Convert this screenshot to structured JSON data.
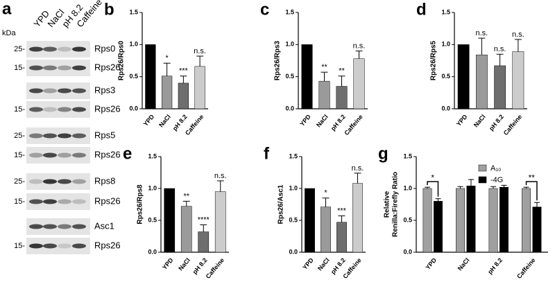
{
  "blot": {
    "panel": "a",
    "unit": "kDa",
    "lanes": [
      "YPD",
      "NaCl",
      "pH 8.2",
      "Caffeine"
    ],
    "rows": [
      {
        "label": "Rps0",
        "marker": "25-"
      },
      {
        "label": "Rps26",
        "marker": "15-"
      },
      {
        "label": "Rps3",
        "marker": null
      },
      {
        "label": "Rps26",
        "marker": "15-"
      },
      {
        "label": "Rps5",
        "marker": "25-"
      },
      {
        "label": "Rps26",
        "marker": "15-"
      },
      {
        "label": "Rps8",
        "marker": "25-"
      },
      {
        "label": "Rps26",
        "marker": "15-"
      },
      {
        "label": "Asc1",
        "marker": null
      },
      {
        "label": "Rps26",
        "marker": "15-"
      }
    ]
  },
  "chart_data": [
    {
      "type": "bar",
      "panel": "b",
      "ylabel": "Rps26/Rps0",
      "categories": [
        "YPD",
        "NaCl",
        "pH 8.2",
        "Caffeine"
      ],
      "values": [
        1.0,
        0.51,
        0.4,
        0.66
      ],
      "errors": [
        0,
        0.2,
        0.11,
        0.16
      ],
      "annotations": [
        null,
        "*",
        "***",
        "n.s."
      ],
      "colors": [
        "#000000",
        "#9a9a9a",
        "#6e6e6e",
        "#cccccc"
      ],
      "ylim": [
        0,
        1.5
      ],
      "yticks": [
        {
          "value": 0,
          "label": "0.0"
        },
        {
          "value": 0.5,
          "label": "0.5"
        },
        {
          "value": 1,
          "label": "1.0"
        },
        {
          "value": 1.5,
          "label": "1.5"
        }
      ]
    },
    {
      "type": "bar",
      "panel": "c",
      "ylabel": "Rps26/Rps3",
      "categories": [
        "YPD",
        "NaCl",
        "pH 8.2",
        "Caffeine"
      ],
      "values": [
        1.0,
        0.43,
        0.35,
        0.78
      ],
      "errors": [
        0,
        0.14,
        0.16,
        0.12
      ],
      "annotations": [
        null,
        "**",
        "**",
        "n.s."
      ],
      "colors": [
        "#000000",
        "#9a9a9a",
        "#6e6e6e",
        "#cccccc"
      ],
      "ylim": [
        0,
        1.5
      ],
      "yticks": [
        {
          "value": 0,
          "label": "0.0"
        },
        {
          "value": 0.5,
          "label": "0.5"
        },
        {
          "value": 1,
          "label": "1.0"
        },
        {
          "value": 1.5,
          "label": "1.5"
        }
      ]
    },
    {
      "type": "bar",
      "panel": "d",
      "ylabel": "Rps26/Rps5",
      "categories": [
        "YPD",
        "NaCl",
        "pH 8.2",
        "Caffeine"
      ],
      "values": [
        1.0,
        0.84,
        0.67,
        0.89
      ],
      "errors": [
        0,
        0.26,
        0.18,
        0.19
      ],
      "annotations": [
        null,
        "n.s.",
        "n.s.",
        "n.s."
      ],
      "colors": [
        "#000000",
        "#9a9a9a",
        "#6e6e6e",
        "#cccccc"
      ],
      "ylim": [
        0,
        1.5
      ],
      "yticks": [
        {
          "value": 0,
          "label": "0.0"
        },
        {
          "value": 0.5,
          "label": "0.5"
        },
        {
          "value": 1,
          "label": "1.0"
        },
        {
          "value": 1.5,
          "label": "1.5"
        }
      ]
    },
    {
      "type": "bar",
      "panel": "e",
      "ylabel": "Rps26/Rps8",
      "categories": [
        "YPD",
        "NaCl",
        "pH 8.2",
        "Caffeine"
      ],
      "values": [
        1.0,
        0.72,
        0.32,
        0.95
      ],
      "errors": [
        0,
        0.08,
        0.11,
        0.17
      ],
      "annotations": [
        null,
        "**",
        "****",
        "n.s."
      ],
      "colors": [
        "#000000",
        "#9a9a9a",
        "#6e6e6e",
        "#cccccc"
      ],
      "ylim": [
        0,
        1.5
      ],
      "yticks": [
        {
          "value": 0,
          "label": "0.0"
        },
        {
          "value": 0.5,
          "label": "0.5"
        },
        {
          "value": 1,
          "label": "1.0"
        },
        {
          "value": 1.5,
          "label": "1.5"
        }
      ]
    },
    {
      "type": "bar",
      "panel": "f",
      "ylabel": "Rps26/Asc1",
      "categories": [
        "YPD",
        "NaCl",
        "pH 8.2",
        "Caffeine"
      ],
      "values": [
        1.0,
        0.71,
        0.47,
        1.08
      ],
      "errors": [
        0,
        0.14,
        0.1,
        0.16
      ],
      "annotations": [
        null,
        "*",
        "***",
        "n.s."
      ],
      "colors": [
        "#000000",
        "#9a9a9a",
        "#6e6e6e",
        "#cccccc"
      ],
      "ylim": [
        0,
        1.5
      ],
      "yticks": [
        {
          "value": 0,
          "label": "0.0"
        },
        {
          "value": 0.5,
          "label": "0.5"
        },
        {
          "value": 1,
          "label": "1.0"
        },
        {
          "value": 1.5,
          "label": "1.5"
        }
      ]
    },
    {
      "type": "grouped_bar",
      "panel": "g",
      "ylabel": [
        "Relative",
        "Renilla:Firefly Ratio"
      ],
      "categories": [
        "YPD",
        "NaCl",
        "pH 8.2",
        "Caffeine"
      ],
      "series": [
        {
          "name": "A₁₀",
          "color": "#a0a0a0",
          "values": [
            1.0,
            1.0,
            1.0,
            1.0
          ],
          "errors": [
            0.02,
            0.03,
            0.03,
            0.02
          ]
        },
        {
          "name": "-4G",
          "color": "#000000",
          "values": [
            0.8,
            1.04,
            1.02,
            0.71
          ],
          "errors": [
            0.04,
            0.1,
            0.03,
            0.07
          ]
        }
      ],
      "annotations": [
        "*",
        null,
        null,
        "**"
      ],
      "legend": "top-right",
      "ylim": [
        0,
        1.5
      ],
      "yticks": [
        {
          "value": 0,
          "label": "0.0"
        },
        {
          "value": 0.5,
          "label": "0.5"
        },
        {
          "value": 1,
          "label": "1.0"
        },
        {
          "value": 1.5,
          "label": "1.5"
        }
      ]
    }
  ]
}
